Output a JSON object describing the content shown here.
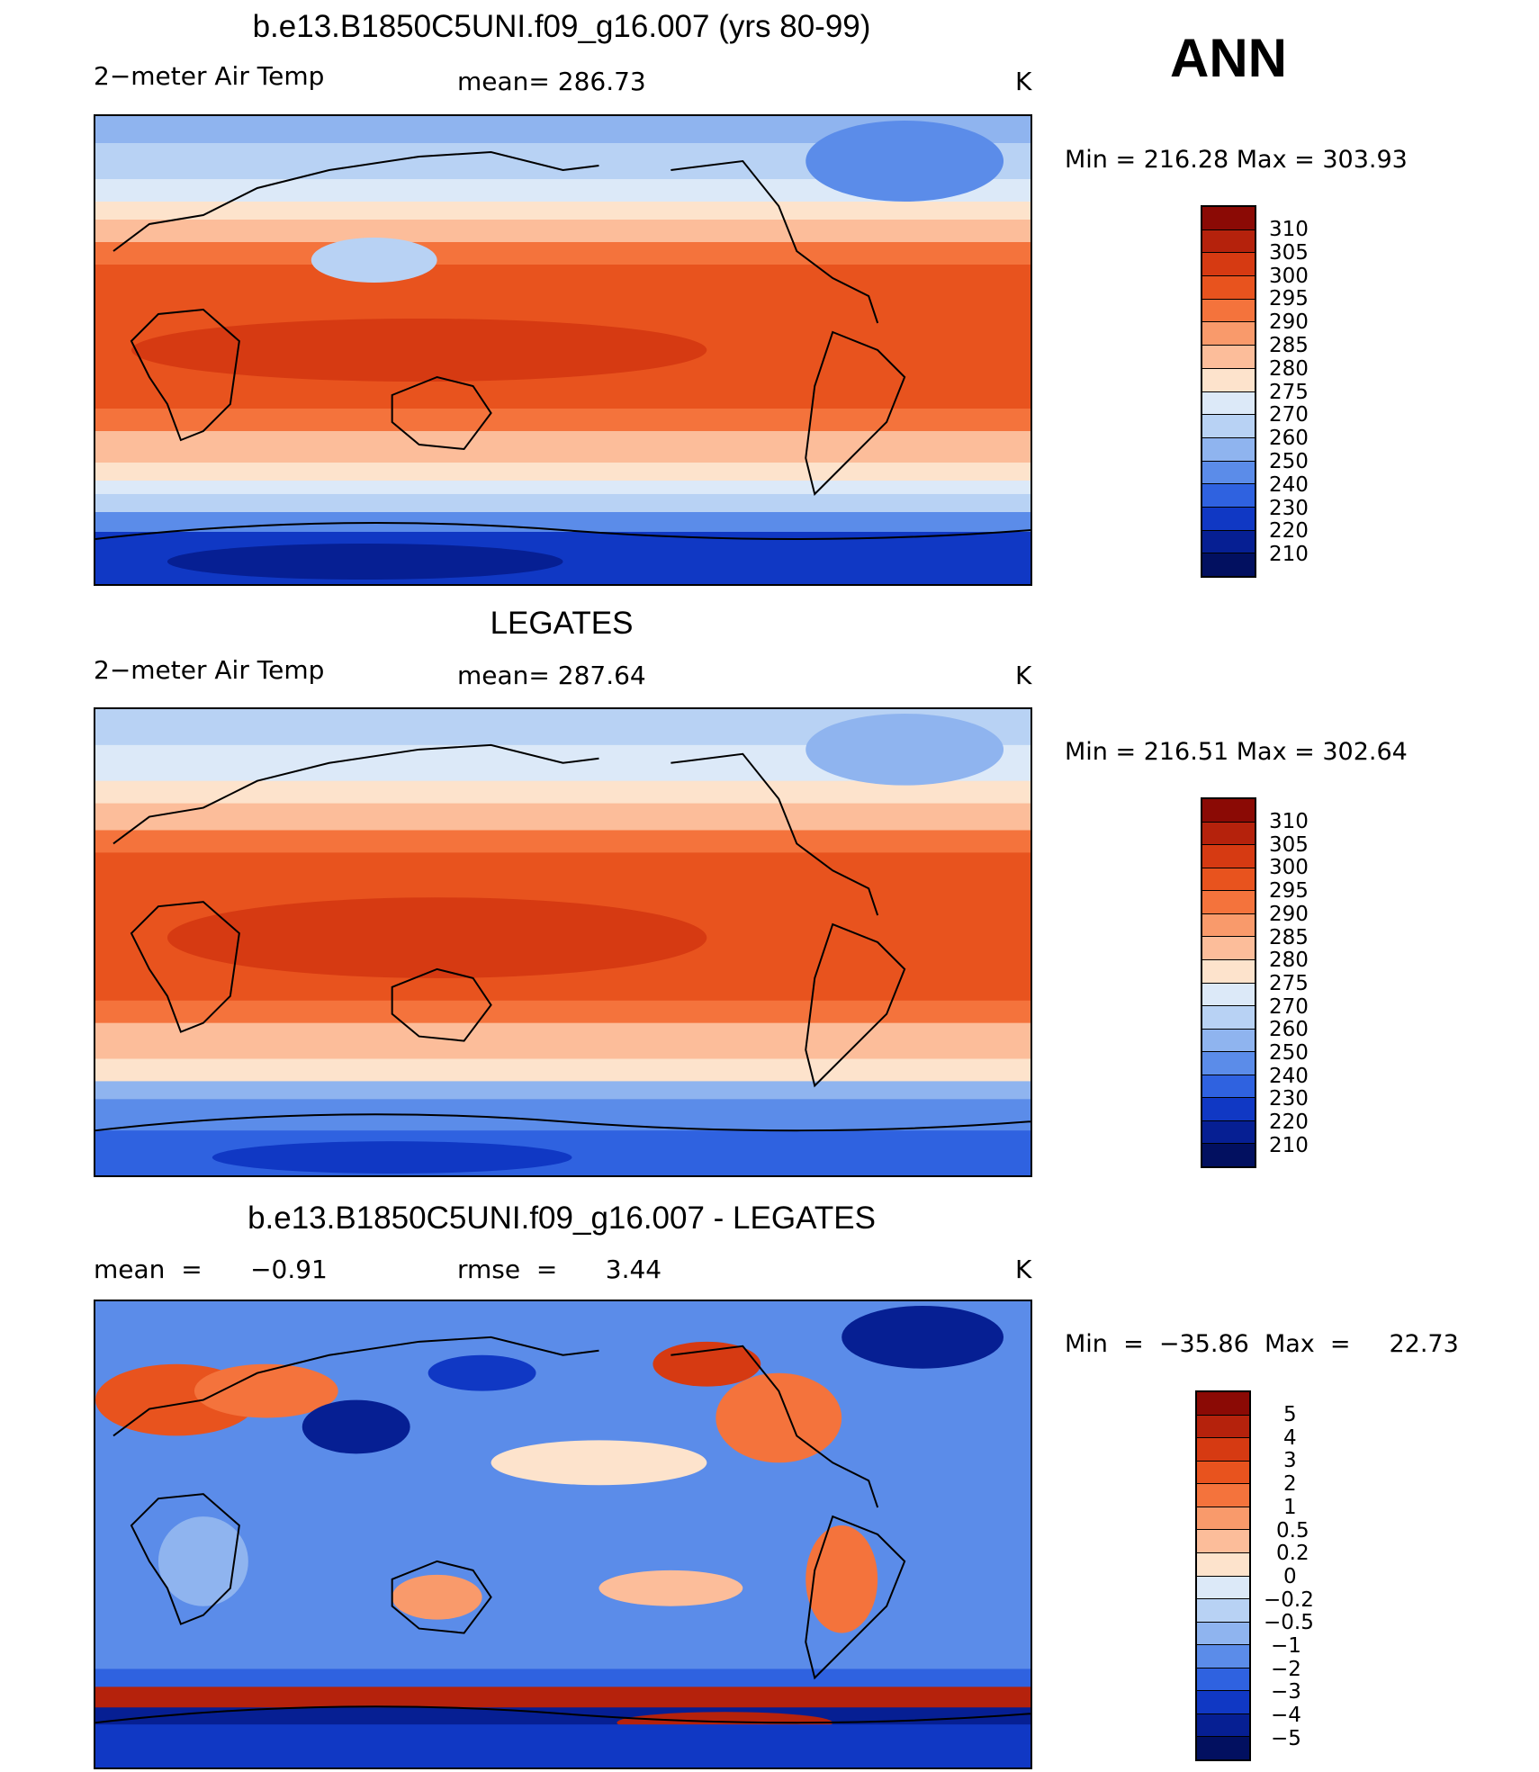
{
  "season": "ANN",
  "units": "K",
  "panels": [
    {
      "title": "b.e13.B1850C5UNI.f09_g16.007 (yrs 80-99)",
      "variable": "2−meter Air Temp",
      "stat": "mean=  286.73",
      "units": "K",
      "minmax": "Min  =  216.28  Max  =  303.93",
      "levels": [
        "310",
        "305",
        "300",
        "295",
        "290",
        "285",
        "280",
        "275",
        "270",
        "260",
        "250",
        "240",
        "230",
        "220",
        "210"
      ]
    },
    {
      "title": "LEGATES",
      "variable": "2−meter Air Temp",
      "stat": "mean=  287.64",
      "units": "K",
      "minmax": "Min  =  216.51  Max  =  302.64",
      "levels": [
        "310",
        "305",
        "300",
        "295",
        "290",
        "285",
        "280",
        "275",
        "270",
        "260",
        "250",
        "240",
        "230",
        "220",
        "210"
      ]
    },
    {
      "title": "b.e13.B1850C5UNI.f09_g16.007 - LEGATES",
      "variable": "mean  =      −0.91",
      "stat": "rmse  =      3.44",
      "units": "K",
      "minmax": "Min  =  −35.86  Max  =     22.73",
      "levels": [
        "5",
        "4",
        "3",
        "2",
        "1",
        "0.5",
        "0.2",
        "0",
        "−0.2",
        "−0.5",
        "−1",
        "−2",
        "−3",
        "−4",
        "−5"
      ]
    }
  ],
  "colors": {
    "abs_scale": [
      "#8b0a05",
      "#b5220c",
      "#d63a12",
      "#e8531e",
      "#f4733c",
      "#f99a6b",
      "#fcbd9a",
      "#fde3cc",
      "#dce9f8",
      "#b8d2f4",
      "#8fb4ef",
      "#5b8ce9",
      "#2f62e0",
      "#1038c4",
      "#061f93",
      "#021060"
    ],
    "diff_scale": [
      "#8b0a05",
      "#b5220c",
      "#d63a12",
      "#e8531e",
      "#f4733c",
      "#f99a6b",
      "#fcbd9a",
      "#fde3cc",
      "#dce9f8",
      "#b8d2f4",
      "#8fb4ef",
      "#5b8ce9",
      "#2f62e0",
      "#1038c4",
      "#061f93",
      "#021060"
    ]
  }
}
